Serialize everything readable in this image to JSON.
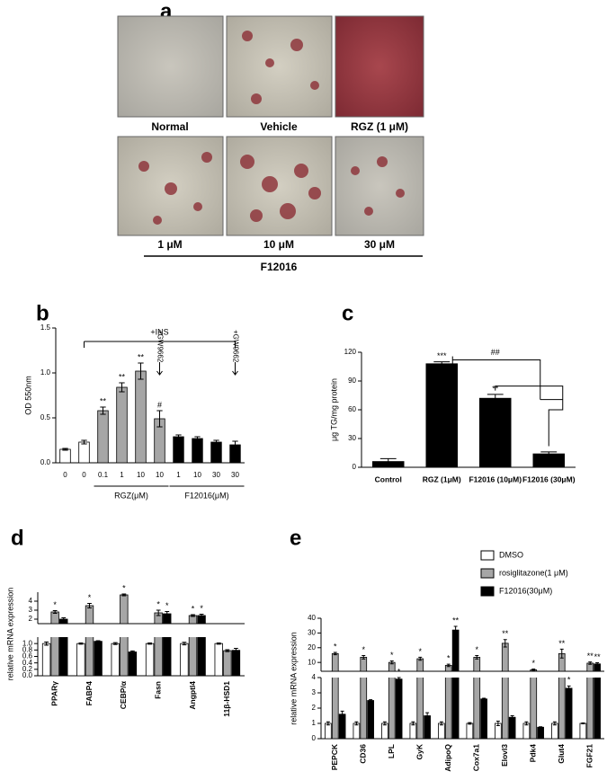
{
  "panel_a": {
    "label": "a",
    "captions": [
      "Normal",
      "Vehicle",
      "RGZ (1 μM)",
      "1 μM",
      "10 μM",
      "30 μM"
    ],
    "group_label": "F12016"
  },
  "chart_data": [
    {
      "type": "bar",
      "label": "b",
      "ylabel": "OD 550nm",
      "categories": [
        "0",
        "0",
        "0.1",
        "1",
        "10",
        "10",
        "1",
        "10",
        "30",
        "30"
      ],
      "values": [
        0.15,
        0.23,
        0.58,
        0.84,
        1.02,
        0.49,
        0.29,
        0.27,
        0.23,
        0.2
      ],
      "errors": [
        0.01,
        0.02,
        0.04,
        0.05,
        0.09,
        0.09,
        0.02,
        0.02,
        0.02,
        0.04
      ],
      "colors": [
        "#ffffff",
        "#ffffff",
        "#a6a6a6",
        "#a6a6a6",
        "#a6a6a6",
        "#a6a6a6",
        "#000000",
        "#000000",
        "#000000",
        "#000000"
      ],
      "significance": [
        null,
        null,
        "**",
        "**",
        "**",
        "#",
        null,
        null,
        null,
        null
      ],
      "annotations": [
        "+INS",
        "+GW9662",
        "+GW9662"
      ],
      "groups": [
        "RGZ(μM)",
        "F12016(μM)"
      ],
      "ylim": [
        0,
        1.5
      ],
      "yticks": [
        {
          "value": 0,
          "label": "0.0"
        },
        0.5,
        {
          "value": 1,
          "label": "1.0"
        },
        1.5
      ]
    },
    {
      "type": "bar",
      "label": "c",
      "ylabel": "μg TG/mg protein",
      "categories": [
        "Control",
        "RGZ (1μM)",
        "F12016 (10μM)",
        "F12016 (30μM)"
      ],
      "values": [
        6,
        108,
        72,
        14
      ],
      "errors": [
        3,
        2,
        4,
        2
      ],
      "colors": [
        "#000000",
        "#000000",
        "#000000",
        "#000000"
      ],
      "significance": [
        null,
        "***",
        "**",
        null
      ],
      "annotations": [
        "##"
      ],
      "ylim": [
        0,
        120
      ],
      "yticks": [
        0,
        30,
        60,
        90,
        120
      ]
    },
    {
      "type": "bar",
      "label": "d",
      "ylabel": "relative mRNA expression",
      "categories": [
        "PPARγ",
        "FABP4",
        "CEBP/α",
        "Fasn",
        "Angptl4",
        "11β-HSD1"
      ],
      "series": [
        {
          "name": "DMSO",
          "color": "#ffffff",
          "values": [
            1.0,
            1.0,
            1.0,
            1.0,
            1.0,
            1.0
          ],
          "errors": [
            0.05,
            0.02,
            0.03,
            0.02,
            0.04,
            0.02
          ]
        },
        {
          "name": "rosiglitazone(1 μM)",
          "color": "#a6a6a6",
          "values": [
            2.8,
            3.5,
            4.7,
            2.7,
            2.4,
            0.78
          ],
          "errors": [
            0.15,
            0.25,
            0.1,
            0.3,
            0.1,
            0.03
          ],
          "significance": [
            "*",
            "*",
            "*",
            "*",
            "*",
            null
          ]
        },
        {
          "name": "F12016(30μM)",
          "color": "#000000",
          "values": [
            2.0,
            1.07,
            0.74,
            2.6,
            2.4,
            0.79
          ],
          "errors": [
            0.15,
            0.02,
            0.03,
            0.25,
            0.15,
            0.06
          ],
          "significance": [
            null,
            null,
            null,
            "*",
            "*",
            null
          ]
        }
      ],
      "segments": [
        {
          "ylim": [
            0,
            1.2
          ],
          "yticks": [
            {
              "value": 0,
              "label": "0.0"
            },
            0.2,
            0.4,
            0.6,
            0.8,
            {
              "value": 1,
              "label": "1.0"
            }
          ]
        },
        {
          "ylim": [
            1.5,
            5
          ],
          "yticks": [
            2,
            3,
            4
          ]
        }
      ]
    },
    {
      "type": "bar",
      "label": "e",
      "ylabel": "relative mRNA expression",
      "legend": "top-right",
      "categories": [
        "PEPCK",
        "CD36",
        "LPL",
        "GyK",
        "AdipoQ",
        "Cox7a1",
        "Elovl3",
        "Pdk4",
        "Glut4",
        "FGF21"
      ],
      "series": [
        {
          "name": "DMSO",
          "color": "#ffffff",
          "values": [
            1.0,
            1.0,
            1.0,
            1.0,
            1.0,
            1.0,
            1.0,
            1.0,
            1.0,
            1.0
          ],
          "errors": [
            0.1,
            0.1,
            0.1,
            0.1,
            0.1,
            0.05,
            0.15,
            0.1,
            0.1,
            0.03
          ]
        },
        {
          "name": "rosiglitazone(1 μM)",
          "color": "#a6a6a6",
          "values": [
            16,
            13.5,
            10,
            12.5,
            8,
            13.5,
            23,
            5,
            16,
            9.5
          ],
          "errors": [
            0.8,
            1.2,
            1,
            1,
            0.8,
            1.2,
            2.5,
            0.5,
            3,
            0.8
          ],
          "significance": [
            "*",
            "*",
            "*",
            "*",
            "*",
            "*",
            "**",
            "*",
            "**",
            "**"
          ]
        },
        {
          "name": "F12016(30μM)",
          "color": "#000000",
          "values": [
            1.6,
            2.5,
            3.9,
            1.5,
            32,
            2.6,
            1.4,
            0.75,
            3.3,
            9
          ],
          "errors": [
            0.2,
            0.05,
            0.1,
            0.2,
            2.5,
            0.05,
            0.1,
            0.03,
            0.15,
            0.8
          ],
          "significance": [
            null,
            null,
            "*",
            null,
            "**",
            null,
            null,
            null,
            "*",
            "**"
          ]
        }
      ],
      "segments": [
        {
          "ylim": [
            0,
            4
          ],
          "yticks": [
            0,
            1,
            2,
            3,
            4
          ]
        },
        {
          "ylim": [
            4,
            40
          ],
          "yticks": [
            10,
            20,
            30,
            40
          ]
        }
      ]
    }
  ]
}
